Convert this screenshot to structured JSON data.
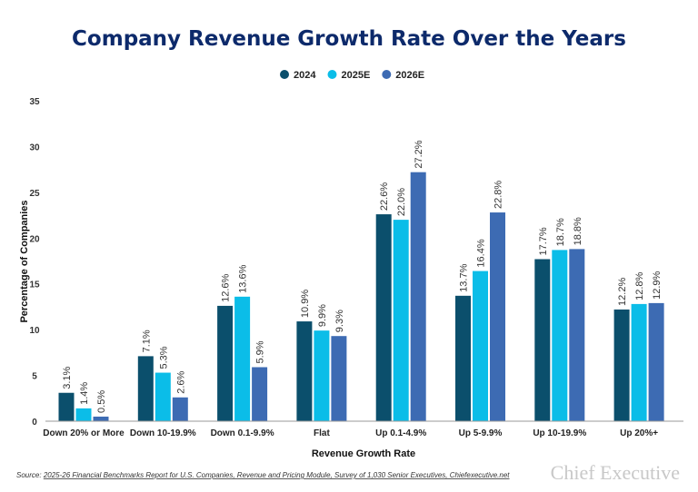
{
  "chart_data": {
    "type": "bar",
    "title": "Company Revenue Growth Rate Over the Years",
    "xlabel": "Revenue Growth Rate",
    "ylabel": "Percentage of Companies",
    "ylim": [
      0,
      35
    ],
    "yticks": [
      0,
      5,
      10,
      15,
      20,
      25,
      30,
      35
    ],
    "grid": false,
    "legend_placement": "top-center",
    "categories": [
      "Down 20% or More",
      "Down 10-19.9%",
      "Down 0.1-9.9%",
      "Flat",
      "Up 0.1-4.9%",
      "Up 5-9.9%",
      "Up 10-19.9%",
      "Up 20%+"
    ],
    "series": [
      {
        "name": "2024",
        "color": "#0b4f6c",
        "values": [
          3.1,
          7.1,
          12.6,
          10.9,
          22.6,
          13.7,
          17.7,
          12.2
        ]
      },
      {
        "name": "2025E",
        "color": "#0bbde8",
        "values": [
          1.4,
          5.3,
          13.6,
          9.9,
          22.0,
          16.4,
          18.7,
          12.8
        ]
      },
      {
        "name": "2026E",
        "color": "#3d6bb3",
        "values": [
          0.5,
          2.6,
          5.9,
          9.3,
          27.2,
          22.8,
          18.8,
          12.9
        ]
      }
    ],
    "label_suffix": "%"
  },
  "source": {
    "prefix": "Source:",
    "text": "2025-26 Financial Benchmarks Report for U.S. Companies, Revenue and Pricing Module, Survey of 1,030 Senior Executives, Chiefexecutive.net"
  },
  "logo": "Chief Executive"
}
